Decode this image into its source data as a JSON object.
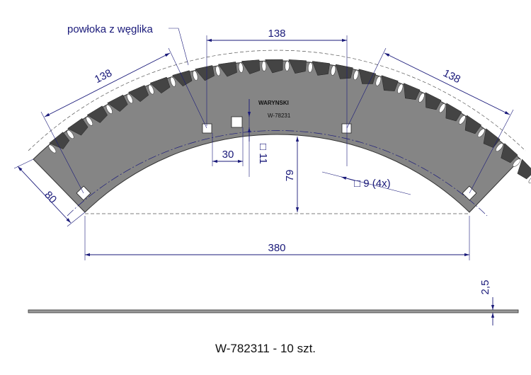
{
  "callout": "powłoka z węglika",
  "dimensions": {
    "left_arc": "138",
    "top": "138",
    "right_arc": "138",
    "end_width": "80",
    "hole_offset": "30",
    "hole_square": "□ 11",
    "height": "79",
    "small_holes": "□ 9 (4x)",
    "span": "380",
    "thickness": "2,5"
  },
  "blade_marking": "W-78231",
  "caption": "W-782311 - 10 szt."
}
